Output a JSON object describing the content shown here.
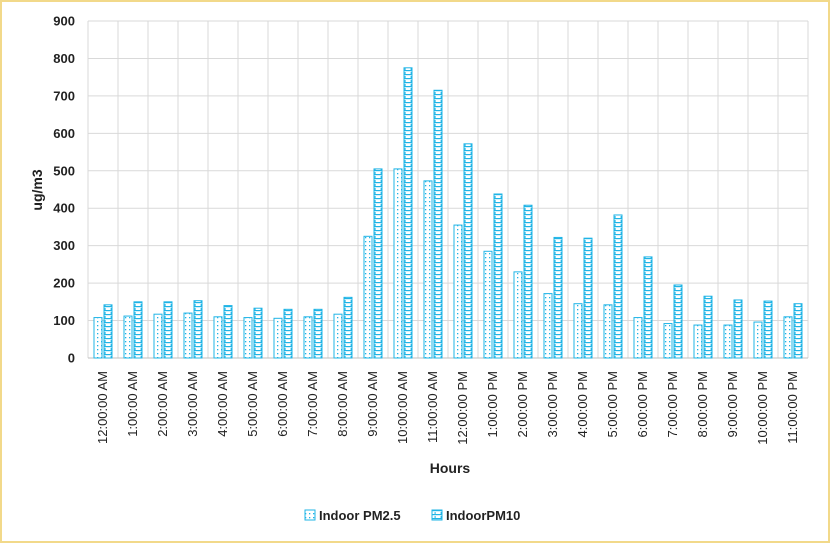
{
  "chart_data": {
    "type": "bar",
    "xlabel": "Hours",
    "ylabel": "ug/m3",
    "ylim": [
      0,
      900
    ],
    "yticks": [
      0,
      100,
      200,
      300,
      400,
      500,
      600,
      700,
      800,
      900
    ],
    "grid": true,
    "legend_position": "bottom",
    "categories": [
      "12:00:00 AM",
      "1:00:00 AM",
      "2:00:00 AM",
      "3:00:00 AM",
      "4:00:00 AM",
      "5:00:00 AM",
      "6:00:00 AM",
      "7:00:00 AM",
      "8:00:00 AM",
      "9:00:00 AM",
      "10:00:00 AM",
      "11:00:00 AM",
      "12:00:00 PM",
      "1:00:00 PM",
      "2:00:00 PM",
      "3:00:00 PM",
      "4:00:00 PM",
      "5:00:00 PM",
      "6:00:00 PM",
      "7:00:00 PM",
      "8:00:00 PM",
      "9:00:00 PM",
      "10:00:00 PM",
      "11:00:00 PM"
    ],
    "series": [
      {
        "name": "Indoor PM2.5",
        "pattern": "dots",
        "color": "#1fb4e6",
        "values": [
          108,
          112,
          117,
          120,
          110,
          108,
          106,
          110,
          117,
          325,
          505,
          473,
          355,
          285,
          230,
          172,
          145,
          142,
          108,
          92,
          88,
          88,
          96,
          110
        ]
      },
      {
        "name": "IndoorPM10",
        "pattern": "bricks",
        "color": "#1fb4e6",
        "values": [
          142,
          150,
          150,
          153,
          140,
          133,
          130,
          130,
          162,
          505,
          775,
          715,
          572,
          438,
          408,
          322,
          320,
          382,
          270,
          195,
          165,
          155,
          152,
          145
        ]
      }
    ]
  }
}
